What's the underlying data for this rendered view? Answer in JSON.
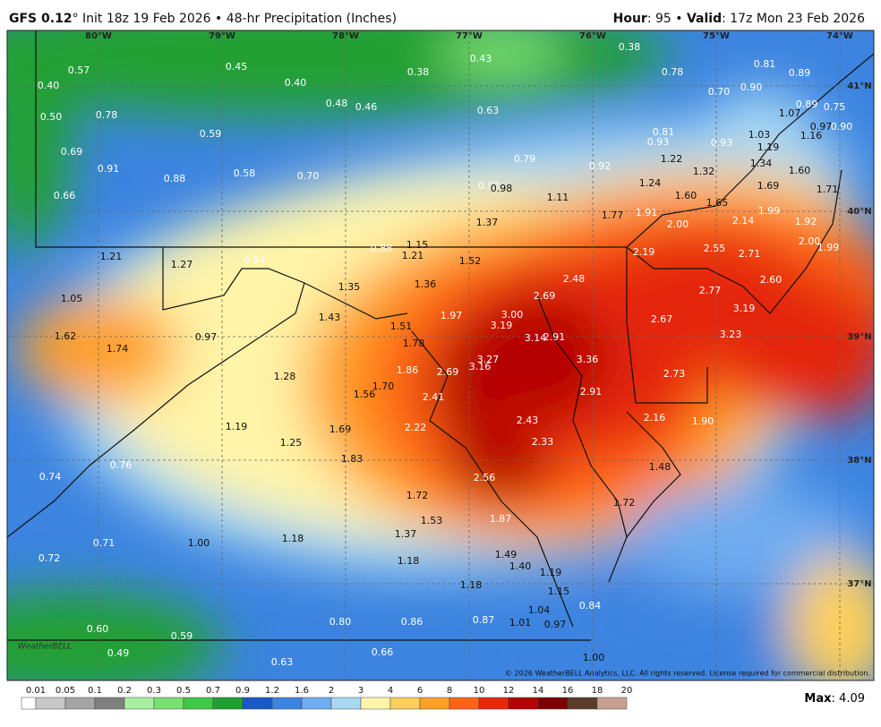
{
  "header": {
    "model": "GFS 0.12",
    "init": "° Init 18z 19 Feb 2026 • 48-hr Precipitation (Inches)",
    "hour_label": "Hour",
    "hour": ": 95 • ",
    "valid_label": "Valid",
    "valid": ": 17z Mon 23 Feb 2026"
  },
  "longitudes": [
    "80°W",
    "79°W",
    "78°W",
    "77°W",
    "76°W",
    "75°W",
    "74°W"
  ],
  "latitudes": [
    "41°N",
    "40°N",
    "39°N",
    "38°N",
    "37°N"
  ],
  "values": [
    "0.57",
    "0.40",
    "0.45",
    "0.40",
    "0.38",
    "0.43",
    "0.38",
    "0.78",
    "0.81",
    "0.89",
    "0.50",
    "0.78",
    "0.48",
    "0.46",
    "0.63",
    "0.70",
    "0.90",
    "0.89",
    "0.75",
    "1.07",
    "0.59",
    "0.81",
    "0.93",
    "0.93",
    "1.03",
    "0.97",
    "0.90",
    "1.16",
    "0.69",
    "1.19",
    "0.91",
    "0.79",
    "0.92",
    "1.22",
    "1.32",
    "1.34",
    "1.60",
    "0.88",
    "0.58",
    "0.70",
    "0.92",
    "0.98",
    "1.11",
    "1.24",
    "1.60",
    "1.65",
    "1.69",
    "1.71",
    "0.66",
    "1.37",
    "1.77",
    "1.91",
    "2.00",
    "2.14",
    "1.99",
    "1.92",
    "2.00",
    "1.99",
    "0.88",
    "1.15",
    "1.21",
    "1.21",
    "1.27",
    "0.94",
    "1.52",
    "2.19",
    "2.55",
    "2.71",
    "1.35",
    "1.36",
    "2.48",
    "2.69",
    "2.60",
    "2.77",
    "1.05",
    "1.43",
    "1.97",
    "3.00",
    "3.19",
    "2.67",
    "3.19",
    "1.51",
    "3.23",
    "1.62",
    "0.97",
    "1.74",
    "1.78",
    "3.14",
    "2.91",
    "3.27",
    "3.36",
    "1.86",
    "2.69",
    "3.16",
    "1.28",
    "2.73",
    "1.70",
    "1.56",
    "2.91",
    "2.41",
    "2.43",
    "2.16",
    "1.90",
    "1.19",
    "1.69",
    "2.22",
    "1.25",
    "2.33",
    "1.83",
    "0.76",
    "1.48",
    "0.74",
    "2.56",
    "1.72",
    "1.72",
    "1.53",
    "1.87",
    "1.37",
    "1.18",
    "0.71",
    "1.00",
    "0.72",
    "1.49",
    "1.18",
    "1.40",
    "1.19",
    "1.18",
    "1.15",
    "1.04",
    "0.84",
    "0.80",
    "0.86",
    "0.87",
    "1.01",
    "0.97",
    "0.60",
    "0.59",
    "0.49",
    "0.66",
    "0.63",
    "1.00"
  ],
  "copyright": "© 2026 WeatherBELL Analytics, LLC. All rights reserved. License required for commercial distribution.",
  "logo": "WeatherBELL",
  "colorbar": {
    "labels": [
      "0.01",
      "0.05",
      "0.1",
      "0.2",
      "0.3",
      "0.5",
      "0.7",
      "0.9",
      "1.2",
      "1.6",
      "2",
      "3",
      "4",
      "6",
      "8",
      "10",
      "12",
      "14",
      "16",
      "18",
      "20"
    ],
    "colors": [
      "#ffffff",
      "#c8c8c8",
      "#a4a4a4",
      "#808080",
      "#a8f0a0",
      "#78e070",
      "#40c848",
      "#20a030",
      "#1858c8",
      "#3c84e0",
      "#70acf0",
      "#a8d8f4",
      "#fff4a8",
      "#ffd058",
      "#ffa028",
      "#ff6414",
      "#e42808",
      "#b40404",
      "#7c0000",
      "#5a3c28",
      "#c8a090"
    ]
  },
  "max": {
    "label": "Max",
    "value": ": 4.09"
  }
}
